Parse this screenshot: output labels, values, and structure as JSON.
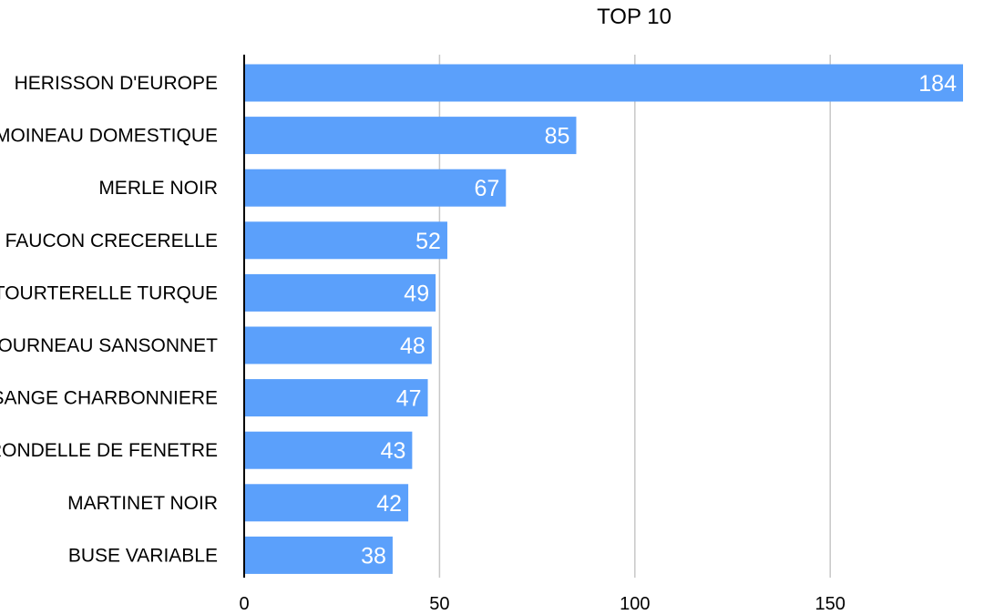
{
  "chart_data": {
    "type": "bar",
    "orientation": "horizontal",
    "title": "TOP 10",
    "categories": [
      "HERISSON D'EUROPE",
      "MOINEAU DOMESTIQUE",
      "MERLE NOIR",
      "FAUCON CRECERELLE",
      "TOURTERELLE TURQUE",
      "ETOURNEAU SANSONNET",
      "MESANGE CHARBONNIERE",
      "HIRONDELLE DE FENETRE",
      "MARTINET NOIR",
      "BUSE VARIABLE"
    ],
    "values": [
      184,
      85,
      67,
      52,
      49,
      48,
      47,
      43,
      42,
      38
    ],
    "xlabel": "",
    "ylabel": "",
    "xlim": [
      0,
      184
    ],
    "xticks": [
      0,
      50,
      100,
      150
    ],
    "grid": true,
    "legend": "none",
    "bar_color": "#5ba0fb",
    "grid_color": "#c8c8c8"
  }
}
